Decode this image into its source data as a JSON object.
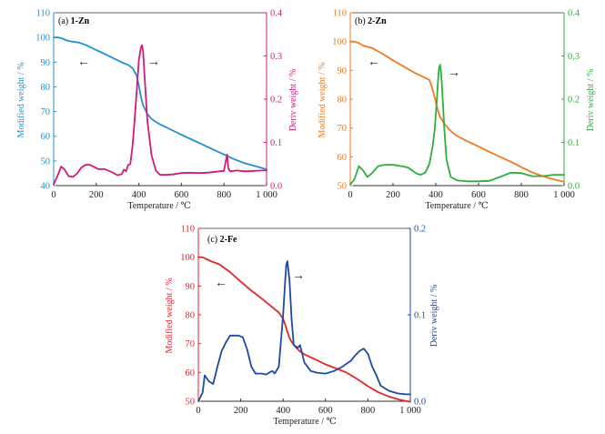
{
  "panels": [
    {
      "label_prefix": "(a)",
      "label_bold": "1-Zn",
      "xlabel": "Temperature / ℃",
      "ylabel_left": "Modified weight / %",
      "ylabel_right": "Deriv weight / %",
      "xticks": [
        "0",
        "200",
        "400",
        "600",
        "800",
        "1 000"
      ],
      "yticks_left": [
        "40",
        "50",
        "60",
        "70",
        "80",
        "90",
        "100",
        "110"
      ],
      "yticks_right": [
        "0.0",
        "0.1",
        "0.2",
        "0.3",
        "0.4"
      ],
      "arrow_left": "←",
      "arrow_right": "→",
      "colors": {
        "weight": "#1f91d0",
        "deriv": "#d21a7a",
        "left_axis": "#1f91d0",
        "right_axis": "#d21a7a"
      }
    },
    {
      "label_prefix": "(b)",
      "label_bold": "2-Zn",
      "xlabel": "Temperature / ℃",
      "ylabel_left": "Modified weight / %",
      "ylabel_right": "Deriv weight / %",
      "xticks": [
        "0",
        "200",
        "400",
        "600",
        "800",
        "1 000"
      ],
      "yticks_left": [
        "50",
        "60",
        "70",
        "80",
        "90",
        "100",
        "110"
      ],
      "yticks_right": [
        "0.0",
        "0.1",
        "0.2",
        "0.3",
        "0.4"
      ],
      "arrow_left": "←",
      "arrow_right": "→",
      "colors": {
        "weight": "#f07a22",
        "deriv": "#2fae3a",
        "left_axis": "#f07a22",
        "right_axis": "#2fae3a"
      }
    },
    {
      "label_prefix": "(c)",
      "label_bold": "2-Fe",
      "xlabel": "Temperature / ℃",
      "ylabel_left": "Modified weight / %",
      "ylabel_right": "Deriv weight / %",
      "xticks": [
        "0",
        "200",
        "400",
        "600",
        "800",
        "1 000"
      ],
      "yticks_left": [
        "50",
        "60",
        "70",
        "80",
        "90",
        "100",
        "110"
      ],
      "yticks_right": [
        "0.0",
        "0.1",
        "0.2"
      ],
      "arrow_left": "←",
      "arrow_right": "→",
      "colors": {
        "weight": "#e2262c",
        "deriv": "#1c4aa6",
        "left_axis": "#e2262c",
        "right_axis": "#1c4aa6"
      }
    }
  ],
  "chart_data": [
    {
      "type": "line",
      "xlim": [
        0,
        1000
      ],
      "ylim_left": [
        40,
        110
      ],
      "ylim_right": [
        0,
        0.4
      ],
      "series": [
        {
          "axis": "left",
          "x": [
            0,
            20,
            40,
            60,
            80,
            120,
            160,
            200,
            240,
            280,
            320,
            350,
            370,
            390,
            400,
            410,
            420,
            440,
            460,
            480,
            500,
            520,
            560,
            600,
            650,
            700,
            750,
            800,
            850,
            900,
            950,
            1000
          ],
          "y": [
            100,
            100,
            99.6,
            98.8,
            98.4,
            97.9,
            96.6,
            94.9,
            93.3,
            91.6,
            89.9,
            88.9,
            87.6,
            84.5,
            80.5,
            76,
            72.5,
            69,
            67,
            65.8,
            64.8,
            64,
            62.3,
            60.6,
            58.6,
            56.6,
            54.6,
            52.6,
            50.6,
            49,
            47.8,
            46.6
          ]
        },
        {
          "axis": "right",
          "x": [
            0,
            20,
            35,
            50,
            70,
            90,
            110,
            130,
            150,
            170,
            190,
            210,
            240,
            270,
            300,
            320,
            330,
            340,
            350,
            360,
            370,
            380,
            390,
            400,
            410,
            415,
            420,
            430,
            440,
            460,
            480,
            500,
            530,
            560,
            600,
            640,
            680,
            720,
            760,
            800,
            810,
            815,
            820,
            830,
            860,
            900,
            940,
            980,
            1000
          ],
          "y": [
            0.003,
            0.025,
            0.044,
            0.038,
            0.022,
            0.02,
            0.028,
            0.042,
            0.048,
            0.048,
            0.043,
            0.038,
            0.038,
            0.032,
            0.024,
            0.027,
            0.037,
            0.033,
            0.048,
            0.05,
            0.09,
            0.15,
            0.22,
            0.29,
            0.32,
            0.325,
            0.31,
            0.23,
            0.15,
            0.07,
            0.035,
            0.025,
            0.025,
            0.026,
            0.029,
            0.03,
            0.029,
            0.03,
            0.032,
            0.034,
            0.06,
            0.072,
            0.04,
            0.033,
            0.035,
            0.033,
            0.034,
            0.035,
            0.035
          ]
        }
      ]
    },
    {
      "type": "line",
      "xlim": [
        0,
        1000
      ],
      "ylim_left": [
        50,
        110
      ],
      "ylim_right": [
        0,
        0.4
      ],
      "series": [
        {
          "axis": "left",
          "x": [
            0,
            20,
            40,
            60,
            100,
            150,
            200,
            250,
            300,
            340,
            370,
            380,
            390,
            400,
            410,
            420,
            440,
            460,
            480,
            500,
            550,
            600,
            650,
            700,
            750,
            800,
            850,
            900,
            950,
            1000
          ],
          "y": [
            100,
            100,
            99.5,
            98.6,
            97.8,
            95.8,
            93.5,
            91.3,
            89.2,
            87.8,
            86.7,
            84.7,
            82,
            79,
            76,
            73.8,
            71.5,
            69.7,
            68.3,
            67.2,
            65.3,
            63.6,
            61.7,
            60,
            58.3,
            56.4,
            54.6,
            53.3,
            52.2,
            51.3
          ]
        },
        {
          "axis": "right",
          "x": [
            0,
            20,
            40,
            60,
            80,
            100,
            130,
            160,
            200,
            240,
            270,
            290,
            310,
            330,
            350,
            370,
            385,
            395,
            405,
            410,
            415,
            420,
            425,
            430,
            440,
            450,
            470,
            500,
            550,
            600,
            650,
            700,
            750,
            800,
            850,
            900,
            950,
            1000
          ],
          "y": [
            0.003,
            0.015,
            0.045,
            0.035,
            0.02,
            0.028,
            0.045,
            0.048,
            0.048,
            0.045,
            0.042,
            0.035,
            0.028,
            0.025,
            0.03,
            0.05,
            0.09,
            0.13,
            0.2,
            0.24,
            0.27,
            0.28,
            0.26,
            0.22,
            0.13,
            0.06,
            0.02,
            0.012,
            0.01,
            0.01,
            0.011,
            0.02,
            0.03,
            0.029,
            0.022,
            0.022,
            0.025,
            0.025
          ]
        }
      ]
    },
    {
      "type": "line",
      "xlim": [
        0,
        1000
      ],
      "ylim_left": [
        50,
        110
      ],
      "ylim_right": [
        0,
        0.2
      ],
      "series": [
        {
          "axis": "left",
          "x": [
            0,
            20,
            40,
            60,
            100,
            150,
            200,
            250,
            300,
            340,
            380,
            400,
            410,
            420,
            430,
            440,
            460,
            480,
            500,
            550,
            600,
            650,
            700,
            750,
            800,
            850,
            900,
            950,
            1000
          ],
          "y": [
            100,
            100,
            99.3,
            98.6,
            97.5,
            94.8,
            91.5,
            88.4,
            85.6,
            83.2,
            80.8,
            78.6,
            76.6,
            74.1,
            72,
            70.6,
            68.7,
            67.3,
            66.3,
            64.6,
            62.8,
            61.4,
            59.9,
            57.7,
            55.2,
            53.1,
            51.6,
            50.5,
            49.8
          ]
        },
        {
          "axis": "right",
          "x": [
            0,
            20,
            30,
            50,
            70,
            90,
            110,
            130,
            150,
            170,
            190,
            210,
            230,
            250,
            270,
            300,
            320,
            340,
            350,
            360,
            380,
            400,
            410,
            415,
            420,
            430,
            440,
            450,
            470,
            480,
            490,
            500,
            530,
            560,
            600,
            640,
            680,
            720,
            740,
            760,
            780,
            800,
            820,
            840,
            860,
            900,
            940,
            980,
            1000
          ],
          "y": [
            0,
            0.01,
            0.03,
            0.023,
            0.02,
            0.04,
            0.058,
            0.068,
            0.076,
            0.076,
            0.076,
            0.074,
            0.06,
            0.04,
            0.032,
            0.032,
            0.031,
            0.034,
            0.035,
            0.032,
            0.04,
            0.1,
            0.14,
            0.158,
            0.162,
            0.14,
            0.095,
            0.065,
            0.062,
            0.065,
            0.055,
            0.045,
            0.035,
            0.033,
            0.032,
            0.035,
            0.04,
            0.047,
            0.053,
            0.058,
            0.061,
            0.055,
            0.04,
            0.03,
            0.018,
            0.012,
            0.009,
            0.008,
            0.008
          ]
        }
      ]
    }
  ]
}
